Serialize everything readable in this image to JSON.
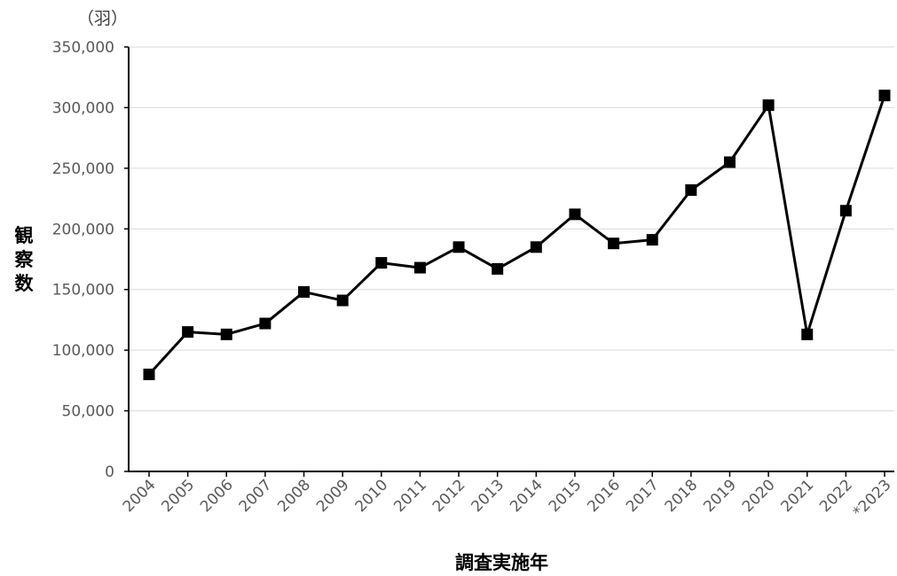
{
  "chart_data": {
    "type": "line",
    "unit_label": "（羽）",
    "ylabel": "観察数",
    "xlabel": "調査実施年",
    "ylim": [
      0,
      350000
    ],
    "ytick_step": 50000,
    "yticks": [
      "0",
      "50,000",
      "100,000",
      "150,000",
      "200,000",
      "250,000",
      "300,000",
      "350,000"
    ],
    "grid": true,
    "legend": "none",
    "marker": "square",
    "line_color": "#000000",
    "categories": [
      "2004",
      "2005",
      "2006",
      "2007",
      "2008",
      "2009",
      "2010",
      "2011",
      "2012",
      "2013",
      "2014",
      "2015",
      "2016",
      "2017",
      "2018",
      "2019",
      "2020",
      "2021",
      "2022",
      "*2023"
    ],
    "series": [
      {
        "values": [
          80000,
          115000,
          113000,
          122000,
          148000,
          141000,
          172000,
          168000,
          185000,
          167000,
          185000,
          212000,
          188000,
          191000,
          232000,
          255000,
          302000,
          113000,
          215000,
          310000
        ]
      }
    ]
  }
}
